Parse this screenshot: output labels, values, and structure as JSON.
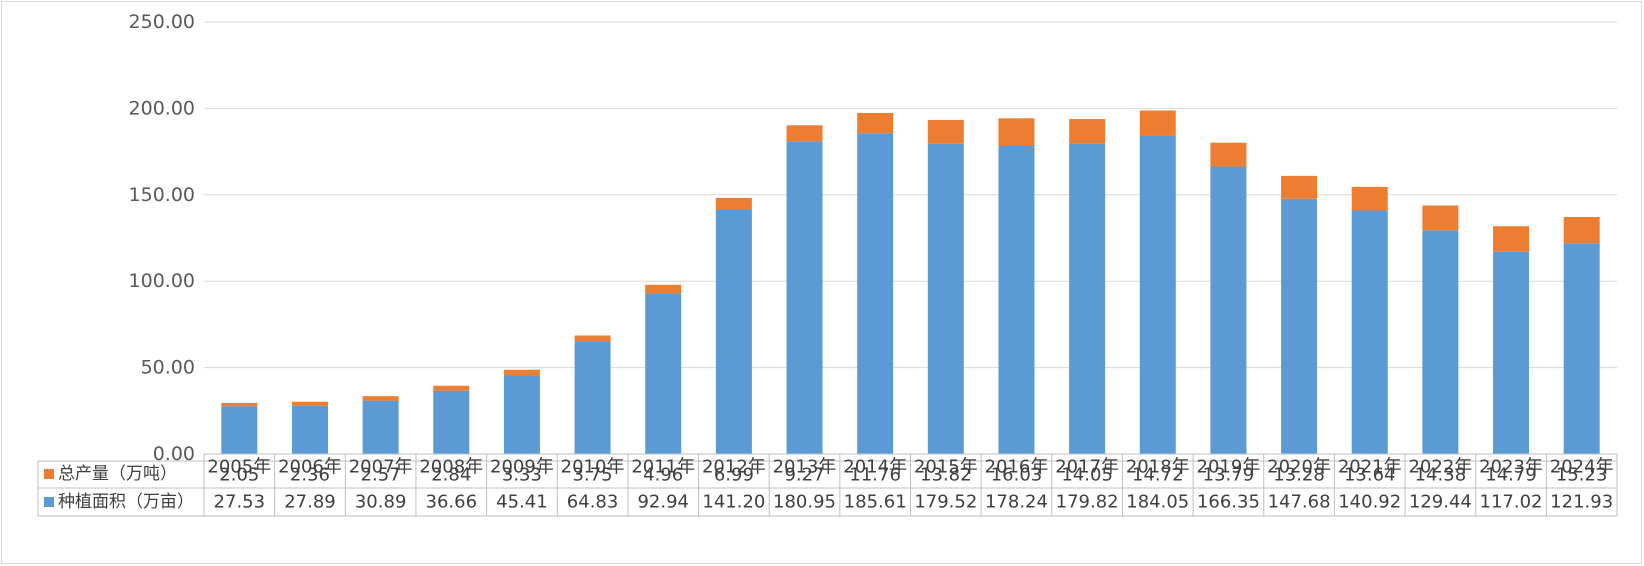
{
  "chart_data": {
    "type": "bar",
    "stacked": true,
    "categories": [
      "2005年",
      "2006年",
      "2007年",
      "2008年",
      "2009年",
      "2010年",
      "2011年",
      "2012年",
      "2013年",
      "2014年",
      "2015年",
      "2016年",
      "2017年",
      "2018年",
      "2019年",
      "2020年",
      "2021年",
      "2022年",
      "2023年",
      "2024年"
    ],
    "series": [
      {
        "name": "种植面积（万亩）",
        "color": "#5b9bd5",
        "values": [
          27.53,
          27.89,
          30.89,
          36.66,
          45.41,
          64.83,
          92.94,
          141.2,
          180.95,
          185.61,
          179.52,
          178.24,
          179.82,
          184.05,
          166.35,
          147.68,
          140.92,
          129.44,
          117.02,
          121.93
        ],
        "labels": [
          "27.53",
          "27.89",
          "30.89",
          "36.66",
          "45.41",
          "64.83",
          "92.94",
          "141.20",
          "180.95",
          "185.61",
          "179.52",
          "178.24",
          "179.82",
          "184.05",
          "166.35",
          "147.68",
          "140.92",
          "129.44",
          "117.02",
          "121.93"
        ]
      },
      {
        "name": "总产量（万吨）",
        "color": "#ed7d31",
        "values": [
          2.05,
          2.36,
          2.57,
          2.84,
          3.33,
          3.75,
          4.96,
          6.99,
          9.27,
          11.76,
          13.82,
          16.03,
          14.05,
          14.72,
          13.79,
          13.28,
          13.64,
          14.38,
          14.79,
          15.23
        ],
        "labels": [
          "2.05",
          "2.36",
          "2.57",
          "2.84",
          "3.33",
          "3.75",
          "4.96",
          "6.99",
          "9.27",
          "11.76",
          "13.82",
          "16.03",
          "14.05",
          "14.72",
          "13.79",
          "13.28",
          "13.64",
          "14.38",
          "14.79",
          "15.23"
        ]
      }
    ],
    "yticks": [
      "0.00",
      "50.00",
      "100.00",
      "150.00",
      "200.00",
      "250.00"
    ],
    "ylim": [
      0,
      250
    ],
    "grid": true,
    "legend": "data-table-left",
    "title": "",
    "xlabel": "",
    "ylabel": ""
  }
}
